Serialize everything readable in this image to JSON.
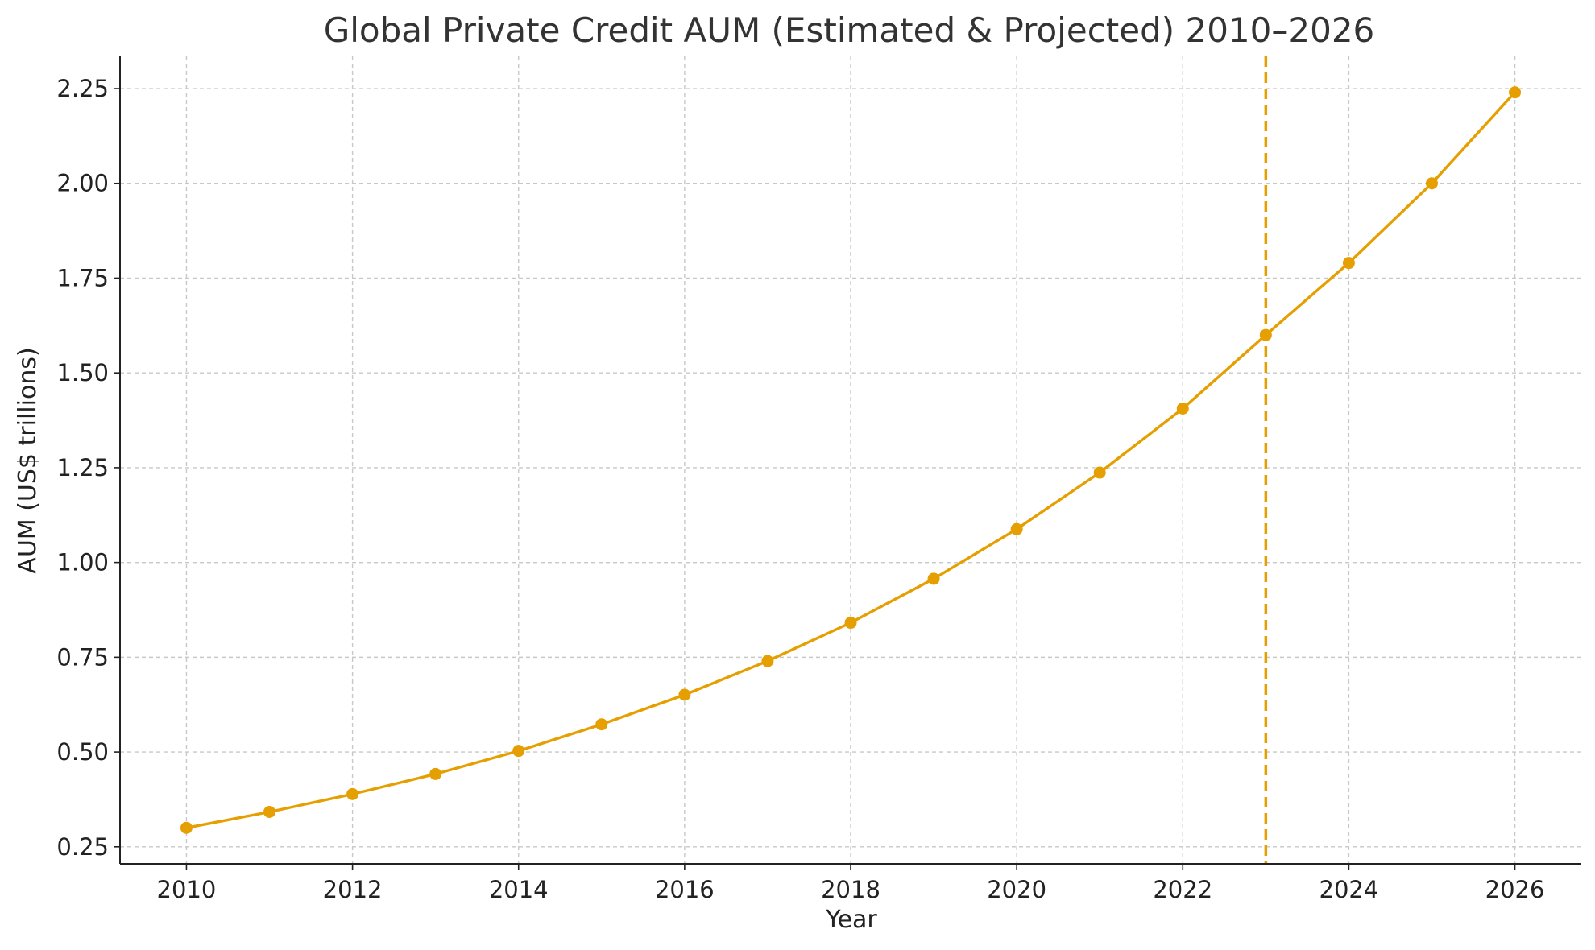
{
  "chart_data": {
    "type": "line",
    "title": "Global Private Credit AUM (Estimated & Projected) 2010–2026",
    "xlabel": "Year",
    "ylabel": "AUM (US$ trillions)",
    "xlim": [
      2009.2,
      2026.8
    ],
    "ylim": [
      0.205,
      2.335
    ],
    "x_ticks": [
      "2010",
      "2012",
      "2014",
      "2016",
      "2018",
      "2020",
      "2022",
      "2024",
      "2026"
    ],
    "y_ticks": [
      "0.25",
      "0.50",
      "0.75",
      "1.00",
      "1.25",
      "1.50",
      "1.75",
      "2.00",
      "2.25"
    ],
    "grid": true,
    "color": "#E69F00",
    "vline": {
      "x": 2023,
      "style": "dashed"
    },
    "series": [
      {
        "x": [
          2010,
          2011,
          2012,
          2013,
          2014,
          2015,
          2016,
          2017,
          2018,
          2019,
          2020,
          2021,
          2022,
          2023,
          2024,
          2025,
          2026
        ],
        "values": [
          0.3,
          0.342,
          0.389,
          0.442,
          0.503,
          0.573,
          0.651,
          0.74,
          0.841,
          0.957,
          1.088,
          1.237,
          1.406,
          1.6,
          1.79,
          2.0,
          2.24
        ]
      }
    ]
  }
}
